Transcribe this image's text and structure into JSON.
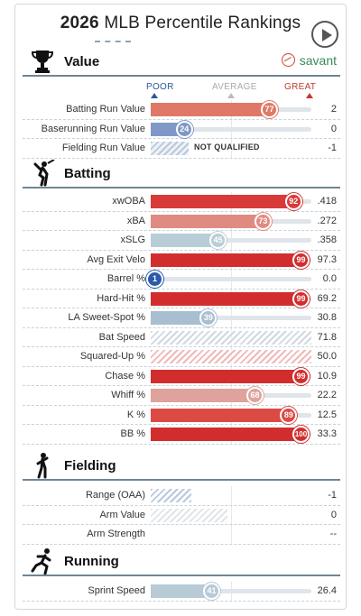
{
  "header": {
    "year": "2026",
    "title": "MLB Percentile Rankings"
  },
  "savant": {
    "label": "savant"
  },
  "scale": {
    "poor": "POOR",
    "average": "AVERAGE",
    "great": "GREAT"
  },
  "colors": {
    "great": "#d22d2d",
    "poor": "#2a5aa8",
    "title_rule": "#6e8595"
  },
  "sections": [
    {
      "key": "value",
      "title": "Value",
      "icon": "trophy-icon",
      "rows": [
        {
          "label": "Batting Run Value",
          "percentile": 77,
          "value": "2",
          "color": "#e07868"
        },
        {
          "label": "Baserunning Run Value",
          "percentile": 24,
          "value": "0",
          "color": "#7f98c8"
        },
        {
          "label": "Fielding Run Value",
          "percentile": null,
          "value": "-1",
          "status": "NOT QUALIFIED"
        }
      ]
    },
    {
      "key": "batting",
      "title": "Batting",
      "icon": "batter-icon",
      "rows": [
        {
          "label": "xwOBA",
          "percentile": 92,
          "value": ".418",
          "color": "#d83a3a"
        },
        {
          "label": "xBA",
          "percentile": 73,
          "value": ".272",
          "color": "#e08b82"
        },
        {
          "label": "xSLG",
          "percentile": 45,
          "value": ".358",
          "color": "#b9cdd6"
        },
        {
          "label": "Avg Exit Velo",
          "percentile": 99,
          "value": "97.3",
          "color": "#d22d2d"
        },
        {
          "label": "Barrel %",
          "percentile": 1,
          "value": "0.0",
          "color": "#2a5aa8"
        },
        {
          "label": "Hard-Hit %",
          "percentile": 99,
          "value": "69.2",
          "color": "#d22d2d"
        },
        {
          "label": "LA Sweet-Spot %",
          "percentile": 39,
          "value": "30.8",
          "color": "#a9bed0"
        },
        {
          "label": "Bat Speed",
          "percentile": null,
          "value": "71.8",
          "hatch": "#d0d8e0"
        },
        {
          "label": "Squared-Up %",
          "percentile": null,
          "value": "50.0",
          "hatch": "#f0b8b8"
        },
        {
          "label": "Chase %",
          "percentile": 99,
          "value": "10.9",
          "color": "#d22d2d"
        },
        {
          "label": "Whiff %",
          "percentile": 68,
          "value": "22.2",
          "color": "#dda39c"
        },
        {
          "label": "K %",
          "percentile": 89,
          "value": "12.5",
          "color": "#dc4a44"
        },
        {
          "label": "BB %",
          "percentile": 100,
          "value": "33.3",
          "color": "#d22d2d"
        }
      ]
    },
    {
      "key": "fielding",
      "title": "Fielding",
      "icon": "fielder-icon",
      "rows": [
        {
          "label": "Range (OAA)",
          "percentile": null,
          "value": "-1",
          "hatch": "#b9c9dc",
          "hatch_pct": 25
        },
        {
          "label": "Arm Value",
          "percentile": null,
          "value": "0",
          "hatch": "#dfe5ea",
          "hatch_pct": 48
        },
        {
          "label": "Arm Strength",
          "percentile": null,
          "value": "--",
          "hatch": null
        }
      ]
    },
    {
      "key": "running",
      "title": "Running",
      "icon": "runner-icon",
      "rows": [
        {
          "label": "Sprint Speed",
          "percentile": 41,
          "value": "26.4",
          "color": "#b7cad6"
        }
      ]
    }
  ]
}
